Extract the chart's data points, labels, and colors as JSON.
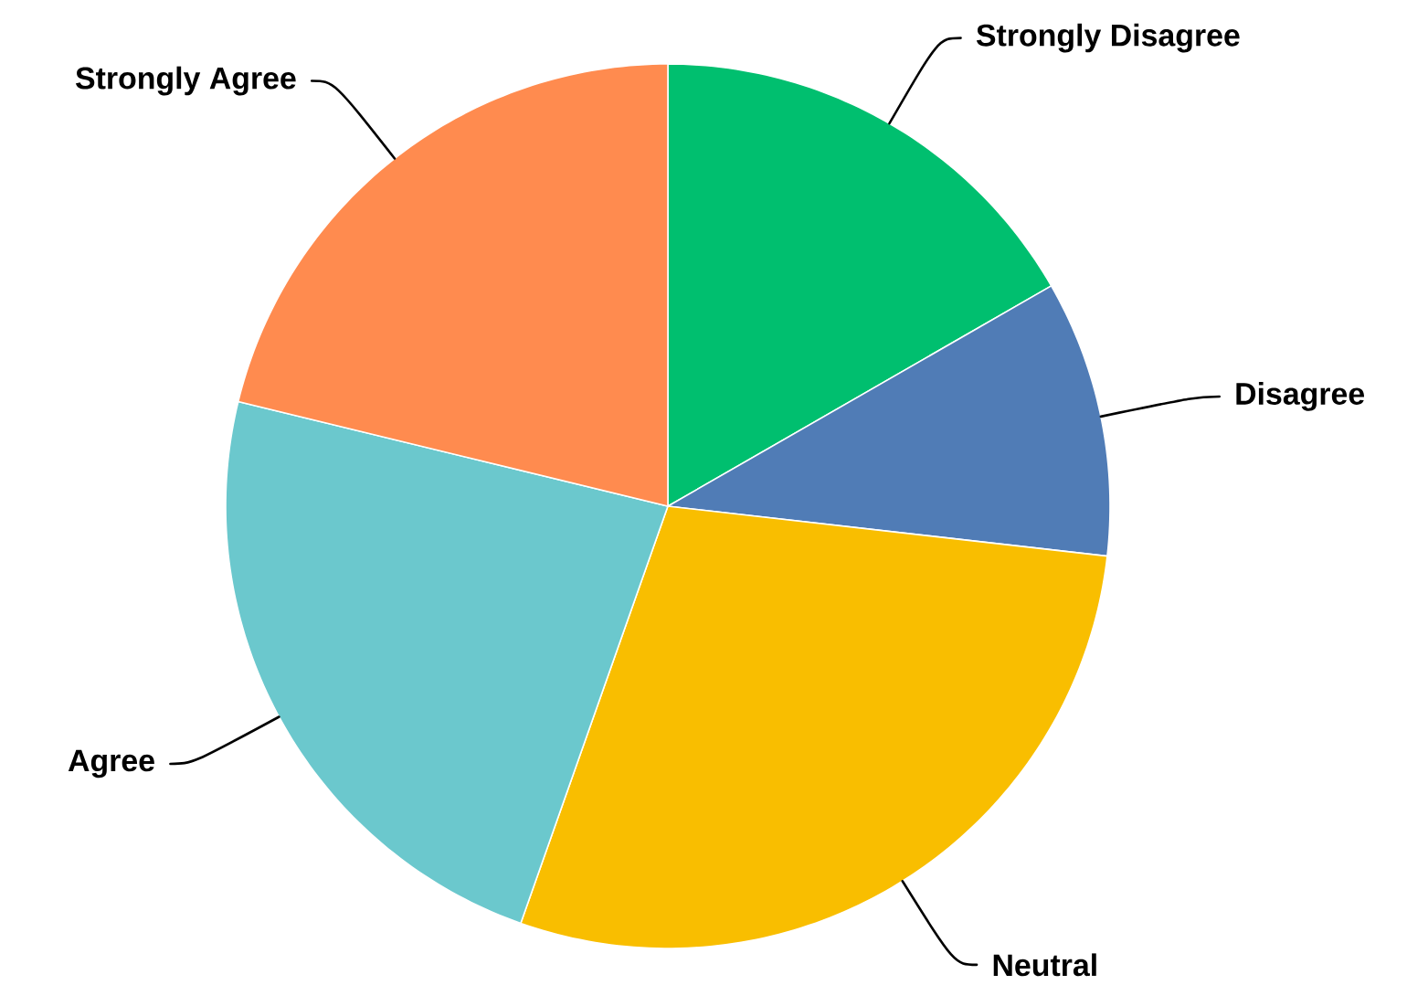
{
  "chart_data": {
    "type": "pie",
    "categories": [
      "Strongly Disagree",
      "Disagree",
      "Neutral",
      "Agree",
      "Strongly Agree"
    ],
    "values": [
      16.7,
      10.1,
      28.6,
      23.4,
      21.2
    ],
    "colors": [
      "#00bf6f",
      "#507cb6",
      "#f9be00",
      "#6bc8cd",
      "#ff8b4f"
    ]
  }
}
